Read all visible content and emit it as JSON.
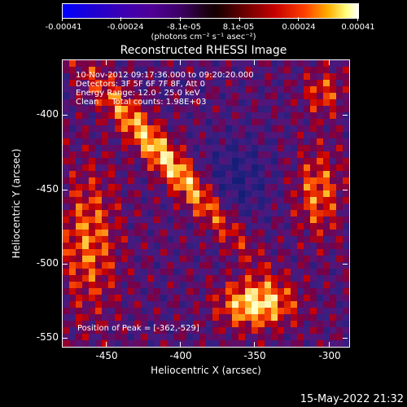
{
  "colorbar": {
    "ticks": [
      "-0.00041",
      "-0.00024",
      "-8.1e-05",
      "8.1e-05",
      "0.00024",
      "0.00041"
    ],
    "units": "(photons cm⁻² s⁻¹ asec⁻²)",
    "colors": [
      "#0000ff",
      "#3c00b4",
      "#1a0010",
      "#c80000",
      "#ff4000",
      "#ffffff"
    ]
  },
  "plot": {
    "title": "Reconstructed RHESSI Image",
    "annotations": [
      "10-Nov-2012 09:17:36.000 to 09:20:20.000",
      "Detectors: 3F 5F 6F 7F 8F, Att 0",
      "Energy Range: 12.0 - 25.0 keV",
      "Clean     Total counts: 1.98E+03"
    ],
    "peak_text": "Position of Peak = [-362,-529]",
    "xlabel": "Heliocentric X (arcsec)",
    "ylabel": "Heliocentric Y (arcsec)",
    "xticks": [
      "-450",
      "-400",
      "-350",
      "-300"
    ],
    "yticks": [
      "-400",
      "-450",
      "-500",
      "-550"
    ],
    "xlim": [
      -480,
      -290
    ],
    "ylim": [
      -562,
      -372
    ]
  },
  "timestamp": "15-May-2022 21:32"
}
